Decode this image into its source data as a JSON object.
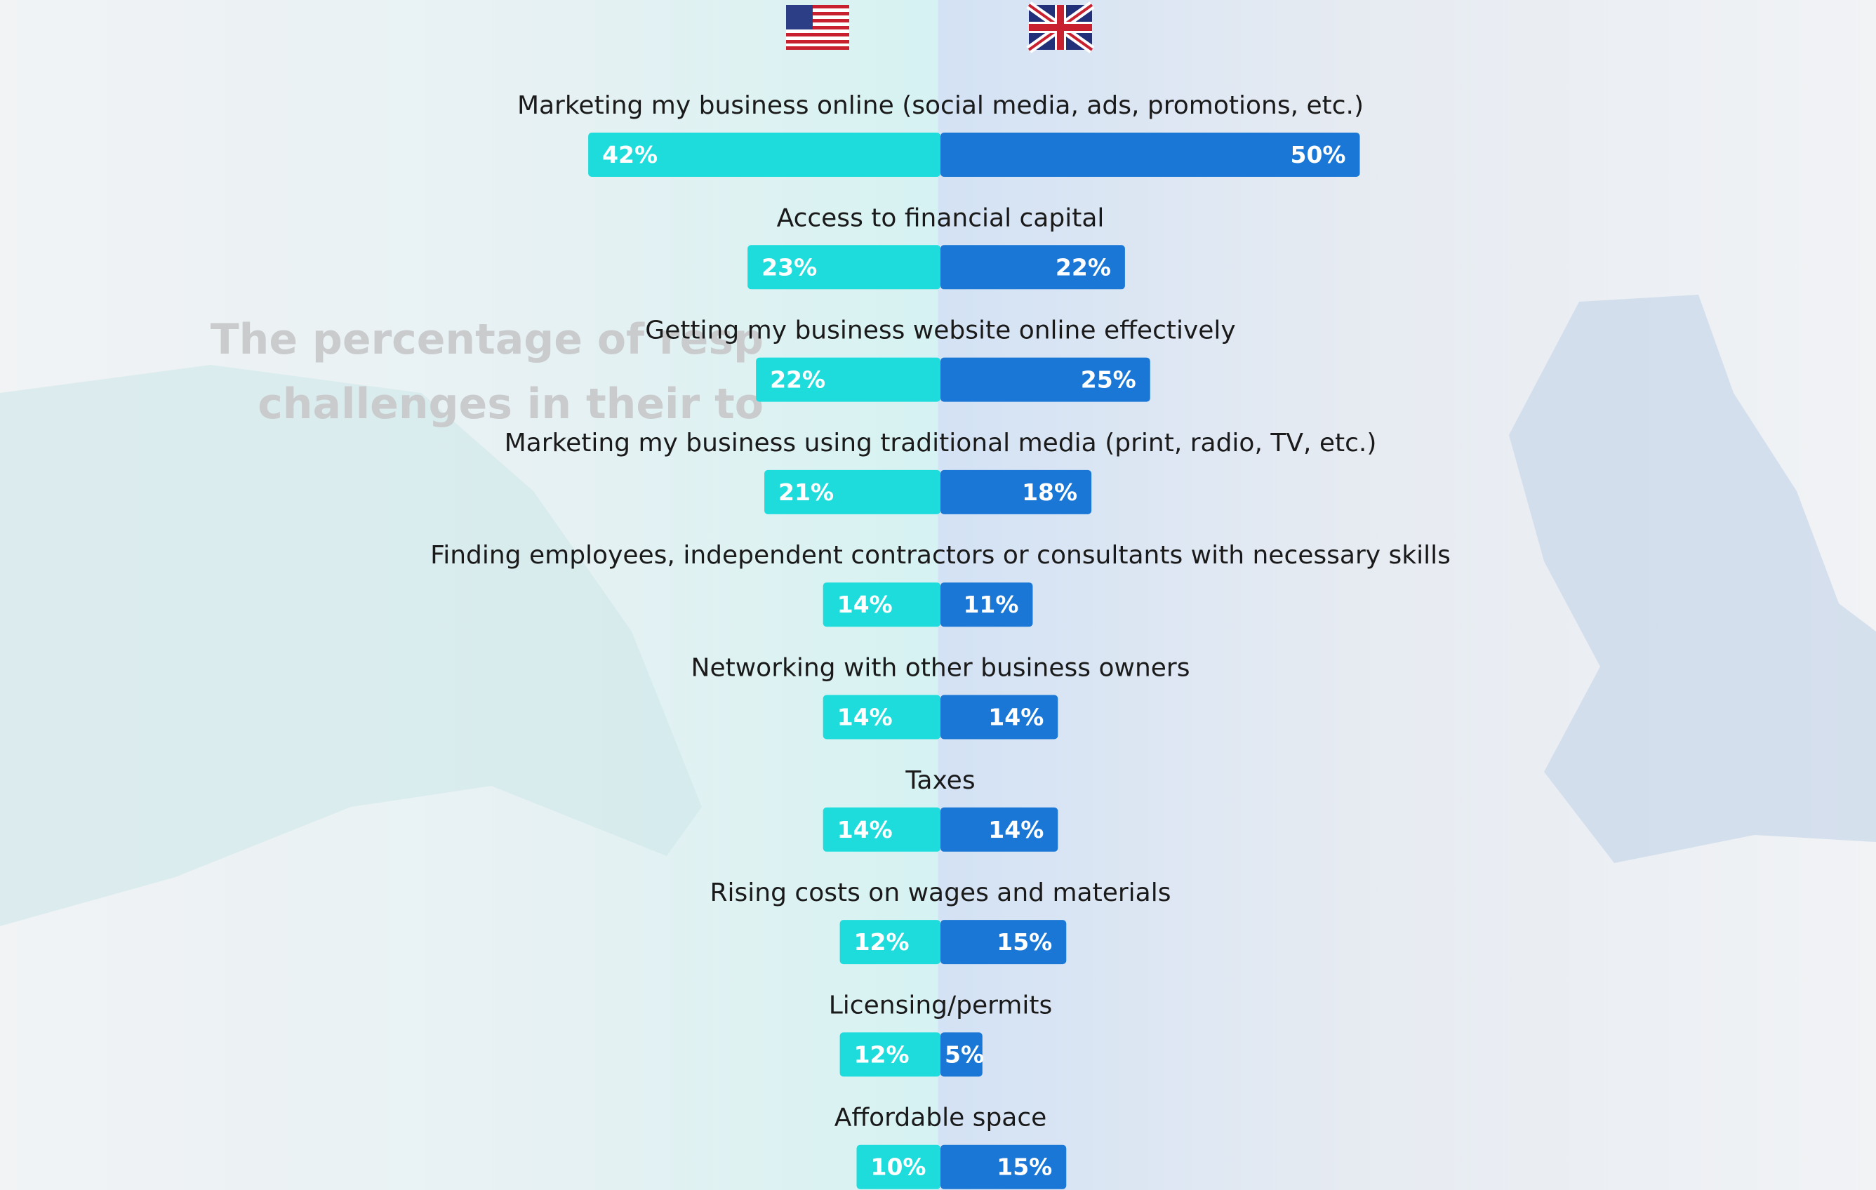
{
  "chart_data": {
    "type": "butterfly-bar",
    "background_text": [
      "The percentage of resp",
      "challenges in their to"
    ],
    "categories": [
      "Marketing my business online (social media, ads, promotions, etc.)",
      "Access to financial capital",
      "Getting my business website online effectively",
      "Marketing my business using traditional media (print, radio, TV, etc.)",
      "Finding employees, independent contractors or consultants with necessary skills",
      "Networking with other business owners",
      "Taxes",
      "Rising costs on wages and materials",
      "Licensing/permits",
      "Affordable space"
    ],
    "series": [
      {
        "color": "#1fdcdc",
        "values": [
          42,
          23,
          22,
          21,
          14,
          14,
          14,
          12,
          12,
          10
        ],
        "value_labels": [
          "42%",
          "23%",
          "22%",
          "21%",
          "14%",
          "14%",
          "14%",
          "12%",
          "12%",
          "10%"
        ]
      },
      {
        "color": "#1a77d5",
        "values": [
          50,
          22,
          25,
          18,
          11,
          14,
          14,
          15,
          5,
          15
        ],
        "value_labels": [
          "50%",
          "22%",
          "25%",
          "18%",
          "11%",
          "14%",
          "14%",
          "15%",
          "5%",
          "15%"
        ]
      }
    ]
  }
}
